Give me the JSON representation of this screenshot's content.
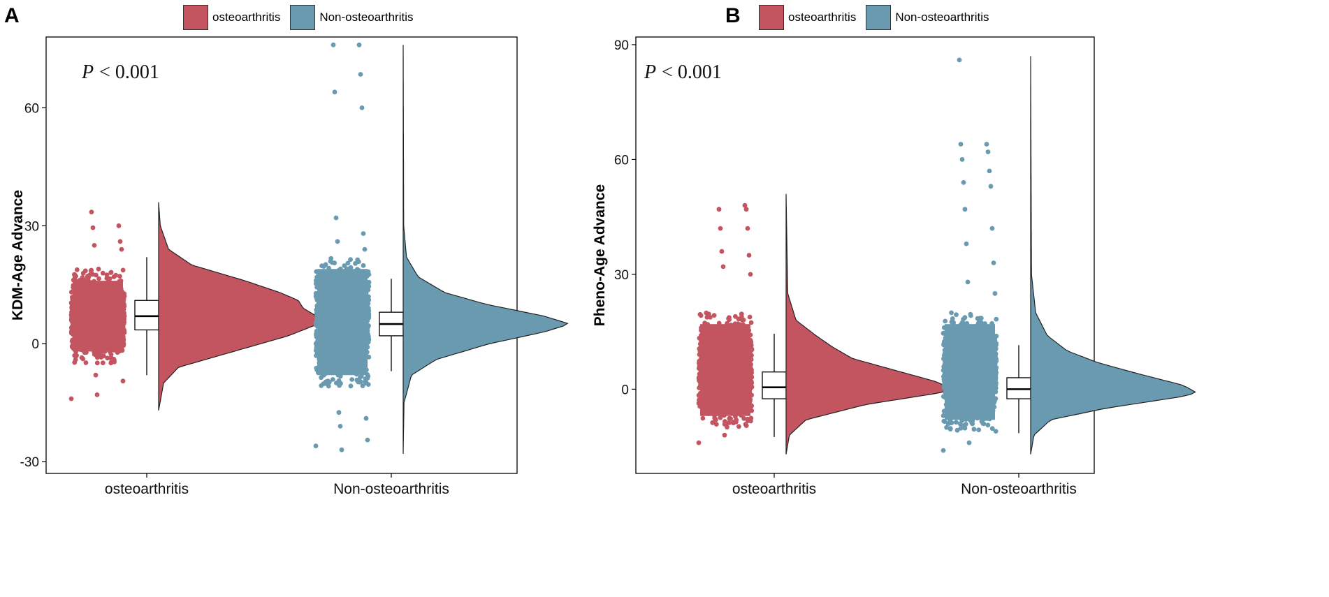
{
  "figure": {
    "series_colors": {
      "osteoarthritis": "#c25560",
      "Non-osteoarthritis": "#6a9ab0"
    }
  },
  "chart_data": [
    {
      "panel": "A",
      "type": "raincloud",
      "categories": [
        "osteoarthritis",
        "Non-osteoarthritis"
      ],
      "legend": [
        {
          "name": "osteoarthritis",
          "color": "#c25560"
        },
        {
          "name": "Non-osteoarthritis",
          "color": "#6a9ab0"
        }
      ],
      "ylabel": "KDM-Age Advance",
      "xlabel": "",
      "ylim": [
        -33,
        78
      ],
      "yticks": [
        -30,
        0,
        30,
        60
      ],
      "ytick_labels": [
        "-30",
        "0",
        "30",
        "60"
      ],
      "annotation": {
        "p_symbol": "P",
        "p_text": "< 0.001"
      },
      "groups": [
        {
          "name": "osteoarthritis",
          "color": "#c25560",
          "box": {
            "whisker_low": -8,
            "q1": 3.5,
            "median": 7,
            "q3": 11,
            "whisker_high": 22
          },
          "density": {
            "min": -17,
            "max": 36,
            "mode": 6,
            "profile": [
              [
                -17,
                0
              ],
              [
                -10,
                0.03
              ],
              [
                -6,
                0.12
              ],
              [
                -2,
                0.45
              ],
              [
                2,
                0.78
              ],
              [
                5,
                0.96
              ],
              [
                6,
                1.0
              ],
              [
                7,
                0.95
              ],
              [
                9,
                0.87
              ],
              [
                11,
                0.84
              ],
              [
                13,
                0.73
              ],
              [
                16,
                0.52
              ],
              [
                20,
                0.2
              ],
              [
                24,
                0.06
              ],
              [
                30,
                0.01
              ],
              [
                36,
                0
              ]
            ]
          },
          "jitter": {
            "core_low": -5,
            "core_high": 19
          },
          "outliers": [
            -14,
            -13,
            -9.5,
            -8,
            24,
            25,
            26,
            29.5,
            30,
            33.5
          ]
        },
        {
          "name": "Non-osteoarthritis",
          "color": "#6a9ab0",
          "box": {
            "whisker_low": -7,
            "q1": 2,
            "median": 5,
            "q3": 8,
            "whisker_high": 16.5
          },
          "density": {
            "min": -28,
            "max": 76,
            "mode": 5,
            "profile": [
              [
                -28,
                0
              ],
              [
                -15,
                0.005
              ],
              [
                -8,
                0.05
              ],
              [
                -4,
                0.2
              ],
              [
                0,
                0.52
              ],
              [
                3,
                0.85
              ],
              [
                5,
                1.0
              ],
              [
                7,
                0.85
              ],
              [
                10,
                0.5
              ],
              [
                13,
                0.25
              ],
              [
                17,
                0.09
              ],
              [
                22,
                0.02
              ],
              [
                30,
                0.003
              ],
              [
                76,
                0
              ]
            ]
          },
          "jitter": {
            "core_low": -11,
            "core_high": 22
          },
          "outliers": [
            -26,
            -27,
            -24.5,
            -21,
            -19,
            -17.5,
            24,
            26,
            28,
            32,
            60,
            64,
            68.5,
            76,
            76
          ]
        }
      ]
    },
    {
      "panel": "B",
      "type": "raincloud",
      "categories": [
        "osteoarthritis",
        "Non-osteoarthritis"
      ],
      "legend": [
        {
          "name": "osteoarthritis",
          "color": "#c25560"
        },
        {
          "name": "Non-osteoarthritis",
          "color": "#6a9ab0"
        }
      ],
      "ylabel": "Pheno-Age Advance",
      "xlabel": "",
      "ylim": [
        -22,
        92
      ],
      "yticks": [
        0,
        30,
        60,
        90
      ],
      "ytick_labels": [
        "0",
        "30",
        "60",
        "90"
      ],
      "annotation": {
        "p_symbol": "P",
        "p_text": "< 0.001"
      },
      "groups": [
        {
          "name": "osteoarthritis",
          "color": "#c25560",
          "box": {
            "whisker_low": -12.5,
            "q1": -2.5,
            "median": 0.5,
            "q3": 4.5,
            "whisker_high": 14.5
          },
          "density": {
            "min": -17,
            "max": 51,
            "mode": 0,
            "profile": [
              [
                -17,
                0
              ],
              [
                -12,
                0.02
              ],
              [
                -8,
                0.12
              ],
              [
                -4,
                0.48
              ],
              [
                -1,
                0.92
              ],
              [
                0,
                1.0
              ],
              [
                2,
                0.9
              ],
              [
                5,
                0.65
              ],
              [
                8,
                0.4
              ],
              [
                11,
                0.28
              ],
              [
                14,
                0.18
              ],
              [
                18,
                0.06
              ],
              [
                25,
                0.01
              ],
              [
                51,
                0
              ]
            ]
          },
          "jitter": {
            "core_low": -10,
            "core_high": 20
          },
          "outliers": [
            -14,
            -12,
            30,
            32,
            35,
            36,
            42,
            42,
            47,
            47,
            48
          ]
        },
        {
          "name": "Non-osteoarthritis",
          "color": "#6a9ab0",
          "box": {
            "whisker_low": -11.5,
            "q1": -2.5,
            "median": 0,
            "q3": 3,
            "whisker_high": 11.5
          },
          "density": {
            "min": -17,
            "max": 87,
            "mode": -1,
            "profile": [
              [
                -17,
                0
              ],
              [
                -12,
                0.02
              ],
              [
                -8,
                0.12
              ],
              [
                -5,
                0.45
              ],
              [
                -2,
                0.9
              ],
              [
                -1,
                1.0
              ],
              [
                1,
                0.92
              ],
              [
                4,
                0.65
              ],
              [
                7,
                0.4
              ],
              [
                10,
                0.22
              ],
              [
                14,
                0.1
              ],
              [
                20,
                0.03
              ],
              [
                30,
                0.005
              ],
              [
                87,
                0
              ]
            ]
          },
          "jitter": {
            "core_low": -11,
            "core_high": 20
          },
          "outliers": [
            -16,
            -14,
            25,
            28,
            33,
            38,
            42,
            47,
            53,
            54,
            57,
            60,
            62,
            64,
            64,
            86
          ]
        }
      ]
    }
  ]
}
